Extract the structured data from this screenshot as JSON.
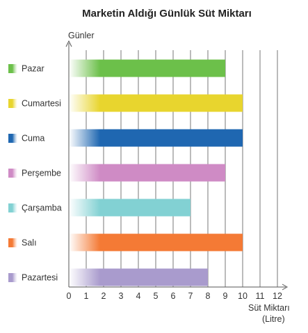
{
  "chart_data": {
    "type": "bar",
    "orientation": "horizontal",
    "title": "Marketin Aldığı Günlük Süt Miktarı",
    "ylabel": "Günler",
    "xlabel_line1": "Süt Miktarı",
    "xlabel_line2": "(Litre)",
    "categories": [
      "Pazar",
      "Cumartesi",
      "Cuma",
      "Perşembe",
      "Çarşamba",
      "Salı",
      "Pazartesi"
    ],
    "values": [
      9,
      10,
      10,
      9,
      7,
      10,
      8
    ],
    "colors": [
      "#6cc04a",
      "#e8d52e",
      "#1f67b1",
      "#cf8bc5",
      "#82d1d3",
      "#f47a35",
      "#a99bcd"
    ],
    "xlim": [
      0,
      12
    ],
    "xticks": [
      "0",
      "1",
      "2",
      "3",
      "4",
      "5",
      "6",
      "7",
      "8",
      "9",
      "10",
      "11",
      "12"
    ],
    "grid": true,
    "legend": "left"
  }
}
